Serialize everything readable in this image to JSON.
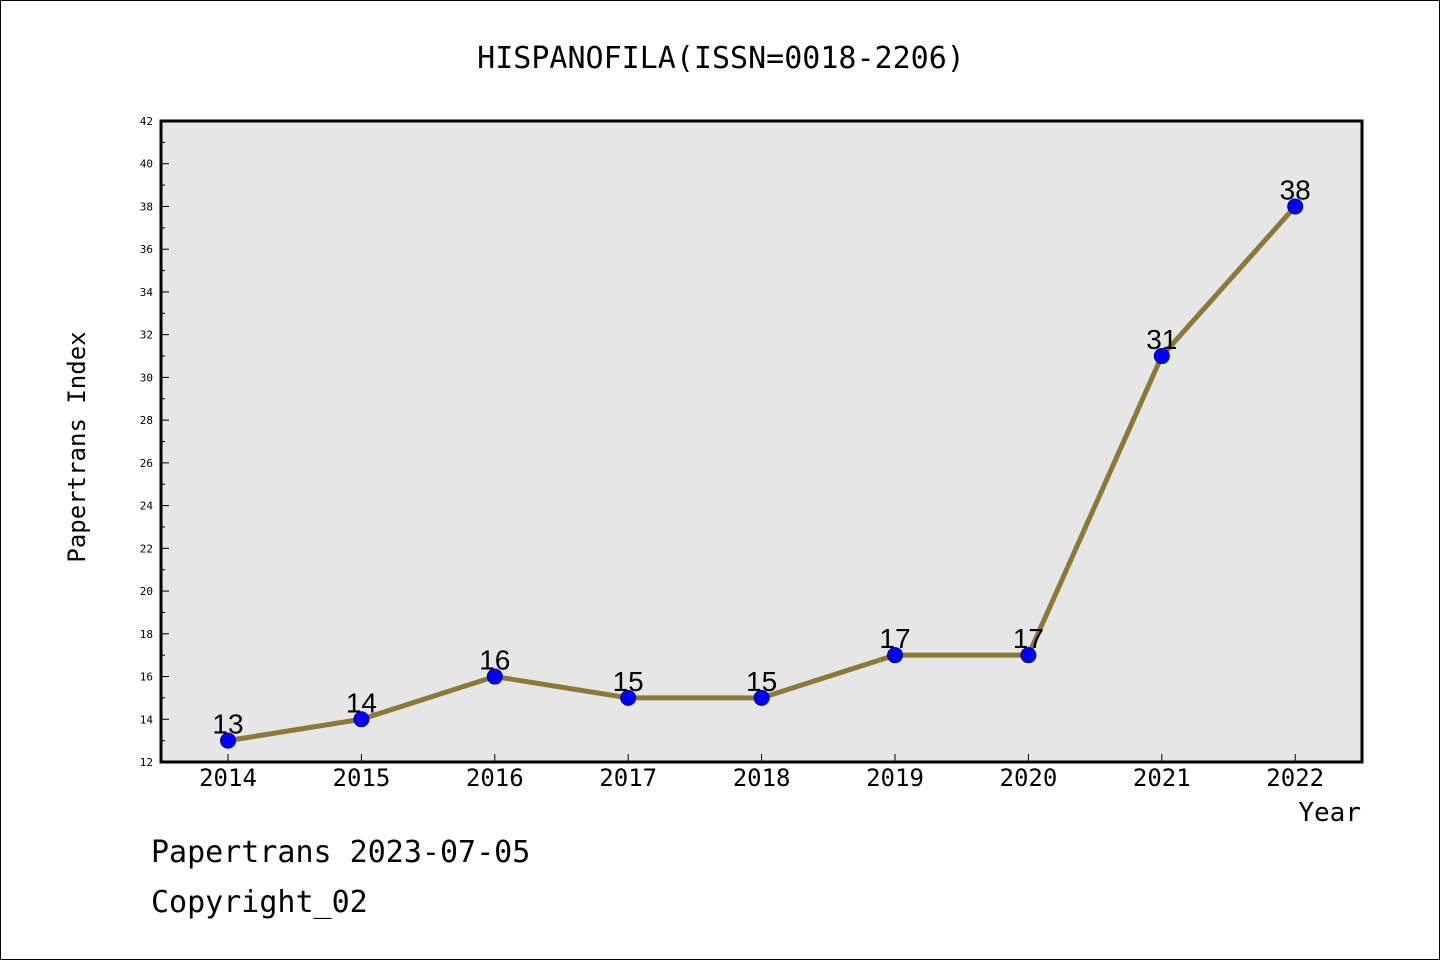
{
  "chart_data": {
    "type": "line",
    "title": "HISPANOFILA(ISSN=0018-2206)",
    "xlabel": "Year",
    "ylabel": "Papertrans Index",
    "categories": [
      "2014",
      "2015",
      "2016",
      "2017",
      "2018",
      "2019",
      "2020",
      "2021",
      "2022"
    ],
    "series": [
      {
        "values": [
          13,
          14,
          16,
          15,
          15,
          17,
          17,
          31,
          38
        ]
      }
    ],
    "ylim": [
      12,
      42
    ],
    "y_ticks": [
      12,
      14,
      16,
      18,
      20,
      22,
      24,
      26,
      28,
      30,
      32,
      34,
      36,
      38,
      40,
      42
    ],
    "grid": false,
    "data_labels": true,
    "colors": {
      "line": "#8b7a37",
      "marker": "#0000ff",
      "marker_edge": "#00008b",
      "plot_background": "#e6e6e6",
      "frame": "#000000"
    }
  },
  "footer": {
    "date_text": "Papertrans 2023-07-05",
    "copyright_text": "Copyright_02"
  }
}
